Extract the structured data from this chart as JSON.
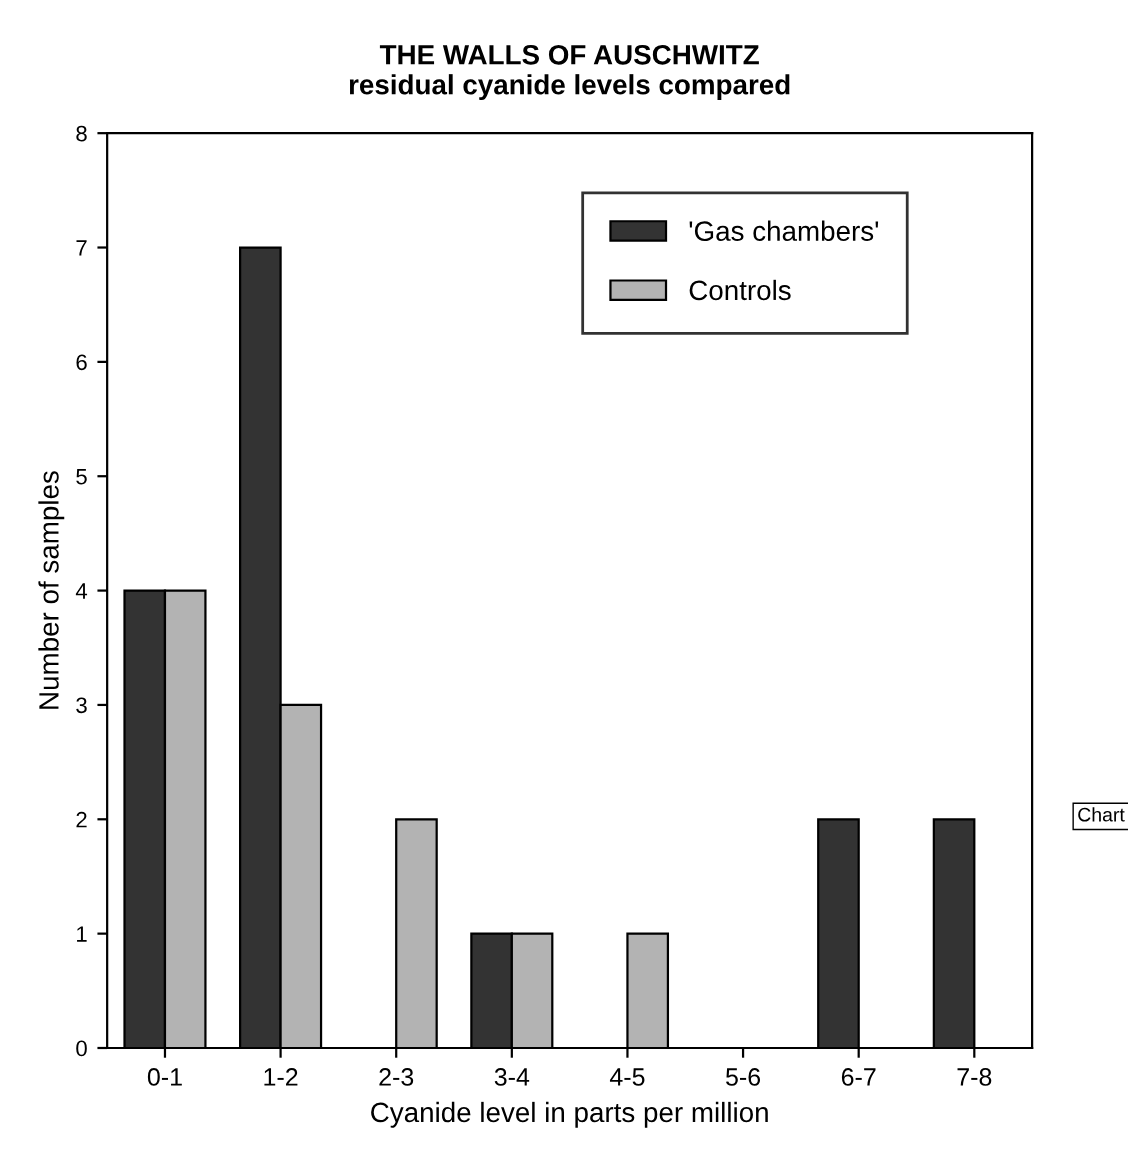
{
  "chart_data": {
    "type": "bar",
    "title": "THE WALLS OF AUSCHWITZ\nresidual cyanide levels compared",
    "xlabel": "Cyanide level in parts per million",
    "ylabel": "Number of samples",
    "categories": [
      "0-1",
      "1-2",
      "2-3",
      "3-4",
      "4-5",
      "5-6",
      "6-7",
      "7-8"
    ],
    "series": [
      {
        "name": "'Gas chambers'",
        "color": "#333333",
        "values": [
          4,
          7,
          0,
          1,
          0,
          0,
          2,
          2
        ]
      },
      {
        "name": "Controls",
        "color": "#b3b3b3",
        "values": [
          4,
          3,
          2,
          1,
          1,
          0,
          0,
          0
        ]
      }
    ],
    "ylim": [
      0,
      8
    ],
    "yticks": [
      0,
      1,
      2,
      3,
      4,
      5,
      6,
      7,
      8
    ],
    "legend": "top right",
    "grid": false,
    "annotations": [
      "Chart"
    ]
  }
}
